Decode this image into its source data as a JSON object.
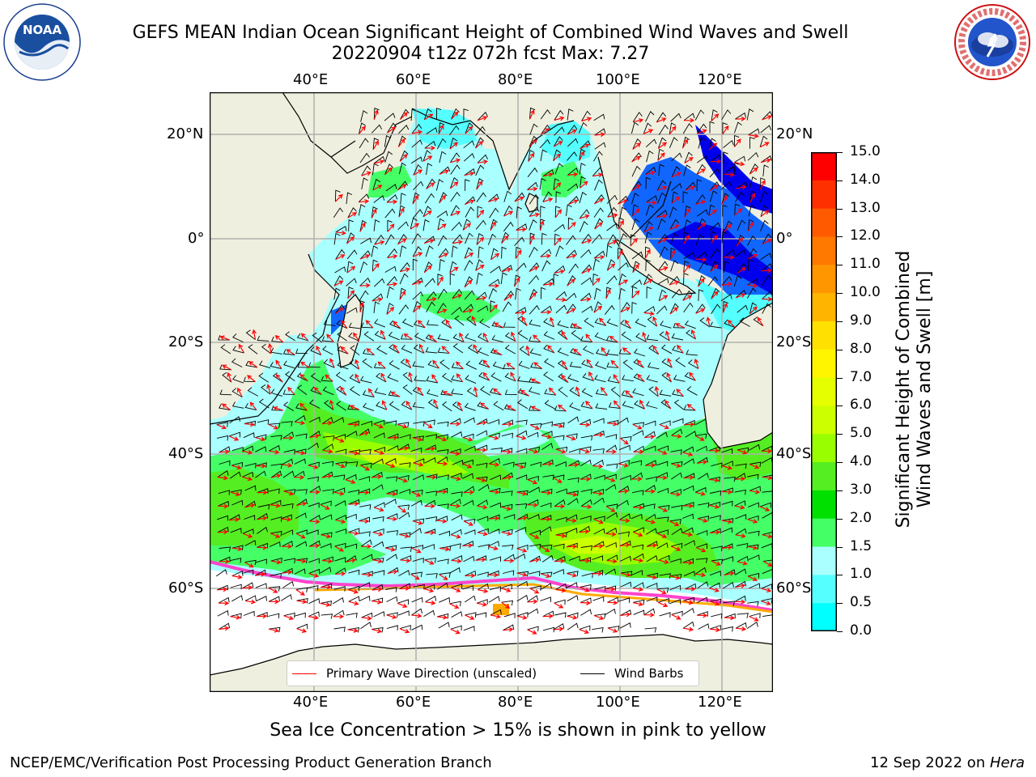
{
  "header": {
    "title_line1": "GEFS MEAN Indian Ocean Significant Height of Combined Wind Waves and Swell",
    "title_line2": "20220904 t12z 072h fcst   Max: 7.27"
  },
  "logos": {
    "noaa_text": "NOAA",
    "noaa_ring": "NATIONAL OCEANIC AND ATMOSPHERIC ADMINISTRATION · U.S. DEPARTMENT OF COMMERCE",
    "nws_ring": "NATIONAL WEATHER SERVICE"
  },
  "map": {
    "lon_labels": [
      "40°E",
      "60°E",
      "80°E",
      "100°E",
      "120°E"
    ],
    "lat_labels": [
      "20°N",
      "0°",
      "20°S",
      "40°S",
      "60°S"
    ],
    "colors": {
      "land": "#efefdf",
      "ocean_base": "#aaffff",
      "arrow": "#ff0000",
      "barb": "#000000"
    }
  },
  "legend": {
    "wave_label": "Primary Wave Direction (unscaled)",
    "barb_label": "Wind Barbs"
  },
  "colorbar": {
    "label_line1": "Significant Height of Combined",
    "label_line2": "Wind Waves and Swell [m]",
    "ticks": [
      "15.0",
      "14.0",
      "13.0",
      "12.0",
      "11.0",
      "10.0",
      "9.0",
      "8.0",
      "7.0",
      "6.0",
      "5.0",
      "4.0",
      "3.0",
      "2.0",
      "1.5",
      "1.0",
      "0.5",
      "0.0"
    ],
    "colors": [
      "#ff0000",
      "#ff3000",
      "#ff5a00",
      "#ff7800",
      "#ff9600",
      "#ffb400",
      "#ffe000",
      "#fff500",
      "#e6ff00",
      "#ccff00",
      "#99ff00",
      "#55ee22",
      "#00e000",
      "#44ff66",
      "#aaffff",
      "#55ffff",
      "#00ffff",
      "#0088ff",
      "#0000ff"
    ]
  },
  "footer": {
    "subtitle": "Sea Ice Concentration > 15% is shown in pink to yellow",
    "left": "NCEP/EMC/Verification Post Processing Product Generation Branch",
    "right_prefix": "12 Sep 2022 on ",
    "right_machine": "Hera"
  }
}
